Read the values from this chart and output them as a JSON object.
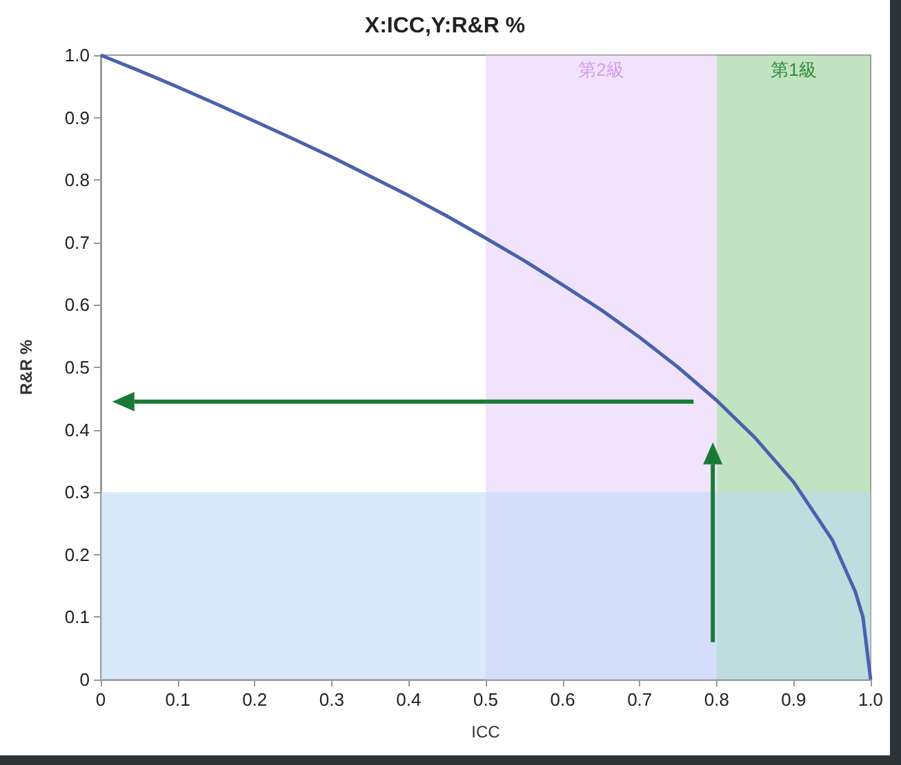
{
  "chart_data": {
    "type": "line",
    "title": "X:ICC,Y:R&R %",
    "xlabel": "ICC",
    "ylabel": "R&R %",
    "x": [
      0,
      0.05,
      0.1,
      0.15,
      0.2,
      0.25,
      0.3,
      0.35,
      0.4,
      0.45,
      0.5,
      0.55,
      0.6,
      0.65,
      0.7,
      0.75,
      0.8,
      0.85,
      0.9,
      0.95,
      0.98,
      0.99,
      1.0
    ],
    "series": [
      {
        "color": "#4a62ac",
        "values": [
          1.0,
          0.975,
          0.949,
          0.922,
          0.894,
          0.866,
          0.837,
          0.806,
          0.775,
          0.742,
          0.707,
          0.671,
          0.632,
          0.592,
          0.548,
          0.5,
          0.447,
          0.387,
          0.316,
          0.224,
          0.141,
          0.1,
          0
        ]
      }
    ],
    "xlim": [
      0,
      1
    ],
    "ylim": [
      0,
      1
    ],
    "xticks": [
      0,
      0.1,
      0.2,
      0.3,
      0.4,
      0.5,
      0.6,
      0.7,
      0.8,
      0.9,
      {
        "value": 1,
        "label": "1.0"
      }
    ],
    "yticks": [
      0,
      0.1,
      0.2,
      0.3,
      0.4,
      0.5,
      0.6,
      0.7,
      0.8,
      0.9,
      {
        "value": 1,
        "label": "1.0"
      }
    ],
    "bands": [
      {
        "axis": "x",
        "from": 0.5,
        "to": 0.8,
        "label": "第2級",
        "color": "#e6ccfa"
      },
      {
        "axis": "x",
        "from": 0.8,
        "to": 1,
        "label": "第1級",
        "color": "#8fcc8f"
      },
      {
        "axis": "y",
        "from": 0,
        "to": 0.3,
        "color": "#bcd8f7"
      }
    ],
    "grid": false,
    "marker": "none",
    "line_style": "solid"
  }
}
